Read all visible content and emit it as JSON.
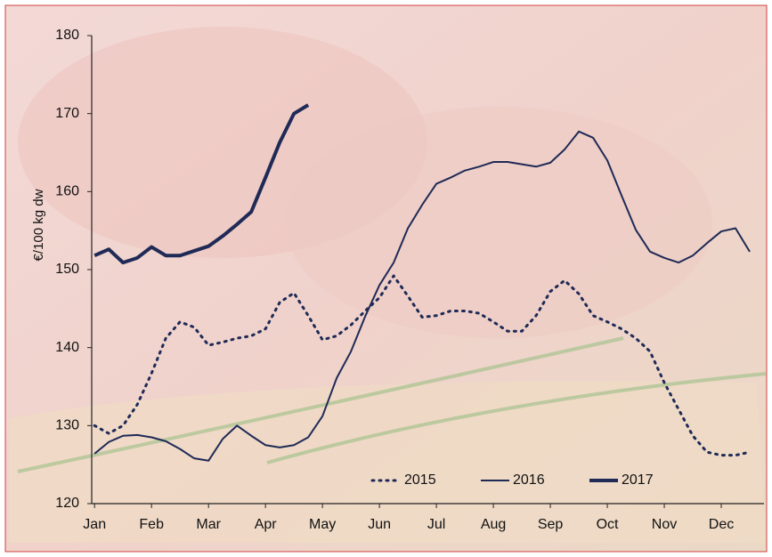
{
  "chart_data": {
    "type": "line",
    "y_label": "€/100 kg dw",
    "x": [
      1,
      1.25,
      1.5,
      1.75,
      2,
      2.25,
      2.5,
      2.75,
      3,
      3.25,
      3.5,
      3.75,
      4,
      4.25,
      4.5,
      4.75,
      5,
      5.25,
      5.5,
      5.75,
      6,
      6.25,
      6.5,
      6.75,
      7,
      7.25,
      7.5,
      7.75,
      8,
      8.25,
      8.5,
      8.75,
      9,
      9.25,
      9.5,
      9.75,
      10,
      10.25,
      10.5,
      10.75,
      11,
      11.25,
      11.5,
      11.75,
      12,
      12.25,
      12.5
    ],
    "xlim": [
      0.95,
      12.75
    ],
    "xticks": [
      {
        "value": 1,
        "label": "Jan"
      },
      {
        "value": 2,
        "label": "Feb"
      },
      {
        "value": 3,
        "label": "Mar"
      },
      {
        "value": 4,
        "label": "Apr"
      },
      {
        "value": 5,
        "label": "May"
      },
      {
        "value": 6,
        "label": "Jun"
      },
      {
        "value": 7,
        "label": "Jul"
      },
      {
        "value": 8,
        "label": "Aug"
      },
      {
        "value": 9,
        "label": "Sep"
      },
      {
        "value": 10,
        "label": "Oct"
      },
      {
        "value": 11,
        "label": "Nov"
      },
      {
        "value": 12,
        "label": "Dec"
      }
    ],
    "ylim": [
      120,
      180
    ],
    "yticks": [
      120,
      130,
      140,
      150,
      160,
      170,
      180
    ],
    "legend": "bottom-right",
    "series": [
      {
        "name": "2015",
        "color": "#1f2a56",
        "style": "dotted",
        "width": 3,
        "values": [
          130,
          129,
          130,
          132.7,
          136.7,
          141.2,
          143.3,
          142.6,
          140.3,
          140.7,
          141.2,
          141.5,
          142.4,
          145.8,
          147,
          144.1,
          141,
          141.5,
          142.9,
          144.7,
          146.4,
          149.2,
          146.6,
          143.9,
          144.1,
          144.7,
          144.7,
          144.4,
          143.3,
          142.1,
          142.1,
          144.1,
          147.2,
          148.6,
          146.9,
          144.1,
          143.3,
          142.4,
          141.2,
          139.5,
          135.5,
          132.1,
          128.7,
          126.6,
          126.2,
          126.2,
          126.6
        ]
      },
      {
        "name": "2016",
        "color": "#1f2a56",
        "style": "solid",
        "width": 2,
        "values": [
          126.4,
          127.9,
          128.7,
          128.8,
          128.5,
          128,
          127,
          125.8,
          125.5,
          128.3,
          130,
          128.7,
          127.5,
          127.2,
          127.5,
          128.5,
          131.2,
          136.1,
          139.5,
          144,
          148,
          150.9,
          155.3,
          158.3,
          161,
          161.8,
          162.7,
          163.2,
          163.8,
          163.8,
          163.5,
          163.2,
          163.7,
          165.4,
          167.7,
          166.9,
          164,
          159.5,
          155.1,
          152.3,
          151.5,
          150.9,
          151.8,
          153.4,
          154.9,
          155.3,
          152.3
        ]
      },
      {
        "name": "2017",
        "color": "#1f2a56",
        "style": "solid",
        "width": 4,
        "values": [
          151.8,
          152.6,
          150.9,
          151.5,
          152.9,
          151.8,
          151.8,
          152.4,
          153,
          154.3,
          155.8,
          157.4,
          161.8,
          166.3,
          170,
          171.1,
          null,
          null,
          null,
          null,
          null,
          null,
          null,
          null,
          null,
          null,
          null,
          null,
          null,
          null,
          null,
          null,
          null,
          null,
          null,
          null,
          null,
          null,
          null,
          null,
          null,
          null,
          null,
          null,
          null,
          null,
          null
        ]
      }
    ]
  }
}
